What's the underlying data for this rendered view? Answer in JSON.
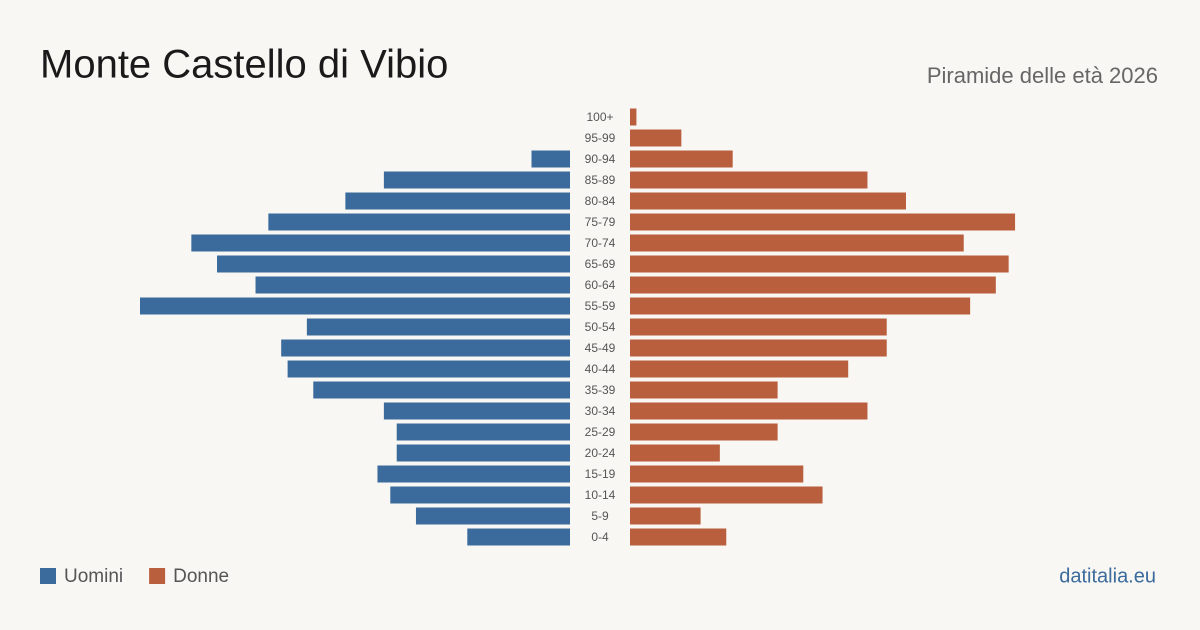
{
  "chart_data": {
    "type": "pyramid",
    "title": "Monte Castello di Vibio",
    "subtitle": "Piramide delle età 2026",
    "source": "datitalia.eu",
    "categories": [
      "100+",
      "95-99",
      "90-94",
      "85-89",
      "80-84",
      "75-79",
      "70-74",
      "65-69",
      "60-64",
      "55-59",
      "50-54",
      "45-49",
      "40-44",
      "35-39",
      "30-34",
      "25-29",
      "20-24",
      "15-19",
      "10-14",
      "5-9",
      "0-4"
    ],
    "series": [
      {
        "name": "Uomini",
        "color": "#3a6b9c",
        "values": [
          0,
          0,
          6,
          29,
          35,
          47,
          59,
          55,
          49,
          67,
          41,
          45,
          44,
          40,
          29,
          27,
          27,
          30,
          28,
          24,
          16
        ]
      },
      {
        "name": "Donne",
        "color": "#b95f3d",
        "values": [
          1,
          8,
          16,
          37,
          43,
          60,
          52,
          59,
          57,
          53,
          40,
          40,
          34,
          23,
          37,
          23,
          14,
          27,
          30,
          11,
          15
        ]
      }
    ]
  }
}
